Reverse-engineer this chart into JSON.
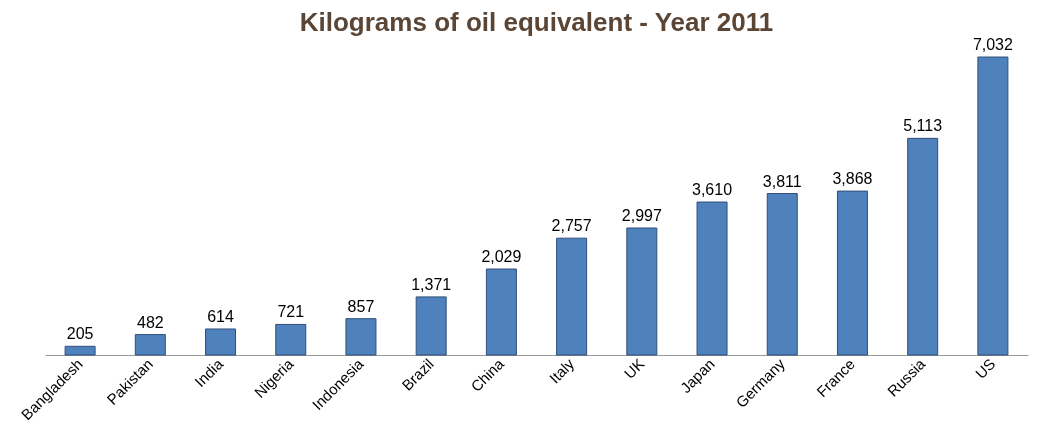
{
  "chart_data": {
    "type": "bar",
    "title": "Kilograms of oil equivalent - Year 2011",
    "categories": [
      "Bangladesh",
      "Pakistan",
      "India",
      "Nigeria",
      "Indonesia",
      "Brazil",
      "China",
      "Italy",
      "UK",
      "Japan",
      "Germany",
      "France",
      "Russia",
      "US"
    ],
    "values": [
      205,
      482,
      614,
      721,
      857,
      1371,
      2029,
      2757,
      2997,
      3610,
      3811,
      3868,
      5113,
      7032
    ],
    "value_labels": [
      "205",
      "482",
      "614",
      "721",
      "857",
      "1,371",
      "2,029",
      "2,757",
      "2,997",
      "3,610",
      "3,811",
      "3,868",
      "5,113",
      "7,032"
    ],
    "color": "#4f81bd"
  }
}
